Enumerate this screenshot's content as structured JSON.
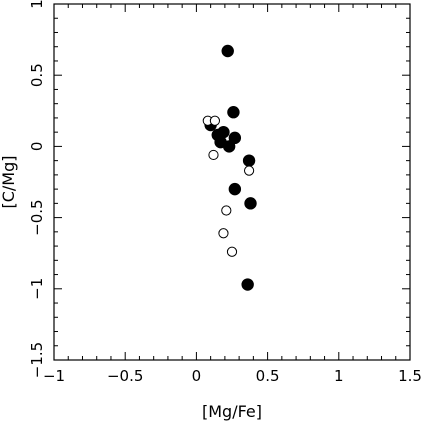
{
  "chart_data": {
    "type": "scatter",
    "xlabel": "[Mg/Fe]",
    "ylabel": "[C/Mg]",
    "xlim": [
      -1,
      1.5
    ],
    "ylim": [
      -1.5,
      1
    ],
    "xticks": [
      -1,
      -0.5,
      0,
      0.5,
      1,
      1.5
    ],
    "yticks": [
      -1.5,
      -1,
      -0.5,
      0,
      0.5,
      1
    ],
    "xtick_labels": [
      "−1",
      "−0.5",
      "0",
      "0.5",
      "1",
      "1.5"
    ],
    "ytick_labels": [
      "−1.5",
      "−1",
      "−0.5",
      "0",
      "0.5",
      "1"
    ],
    "grid": false,
    "legend": "none",
    "series": [
      {
        "marker": "filled-circle",
        "color": "#000000",
        "points": [
          {
            "x": 0.22,
            "y": 0.67
          },
          {
            "x": 0.26,
            "y": 0.24
          },
          {
            "x": 0.1,
            "y": 0.15
          },
          {
            "x": 0.15,
            "y": 0.08
          },
          {
            "x": 0.19,
            "y": 0.1
          },
          {
            "x": 0.17,
            "y": 0.03
          },
          {
            "x": 0.23,
            "y": 0.0
          },
          {
            "x": 0.27,
            "y": 0.06
          },
          {
            "x": 0.37,
            "y": -0.1
          },
          {
            "x": 0.27,
            "y": -0.3
          },
          {
            "x": 0.38,
            "y": -0.4
          },
          {
            "x": 0.36,
            "y": -0.97
          }
        ]
      },
      {
        "marker": "open-circle",
        "color": "#000000",
        "points": [
          {
            "x": 0.08,
            "y": 0.18
          },
          {
            "x": 0.13,
            "y": 0.18
          },
          {
            "x": 0.12,
            "y": -0.06
          },
          {
            "x": 0.37,
            "y": -0.17
          },
          {
            "x": 0.21,
            "y": -0.45
          },
          {
            "x": 0.19,
            "y": -0.61
          },
          {
            "x": 0.25,
            "y": -0.74
          }
        ]
      }
    ]
  }
}
